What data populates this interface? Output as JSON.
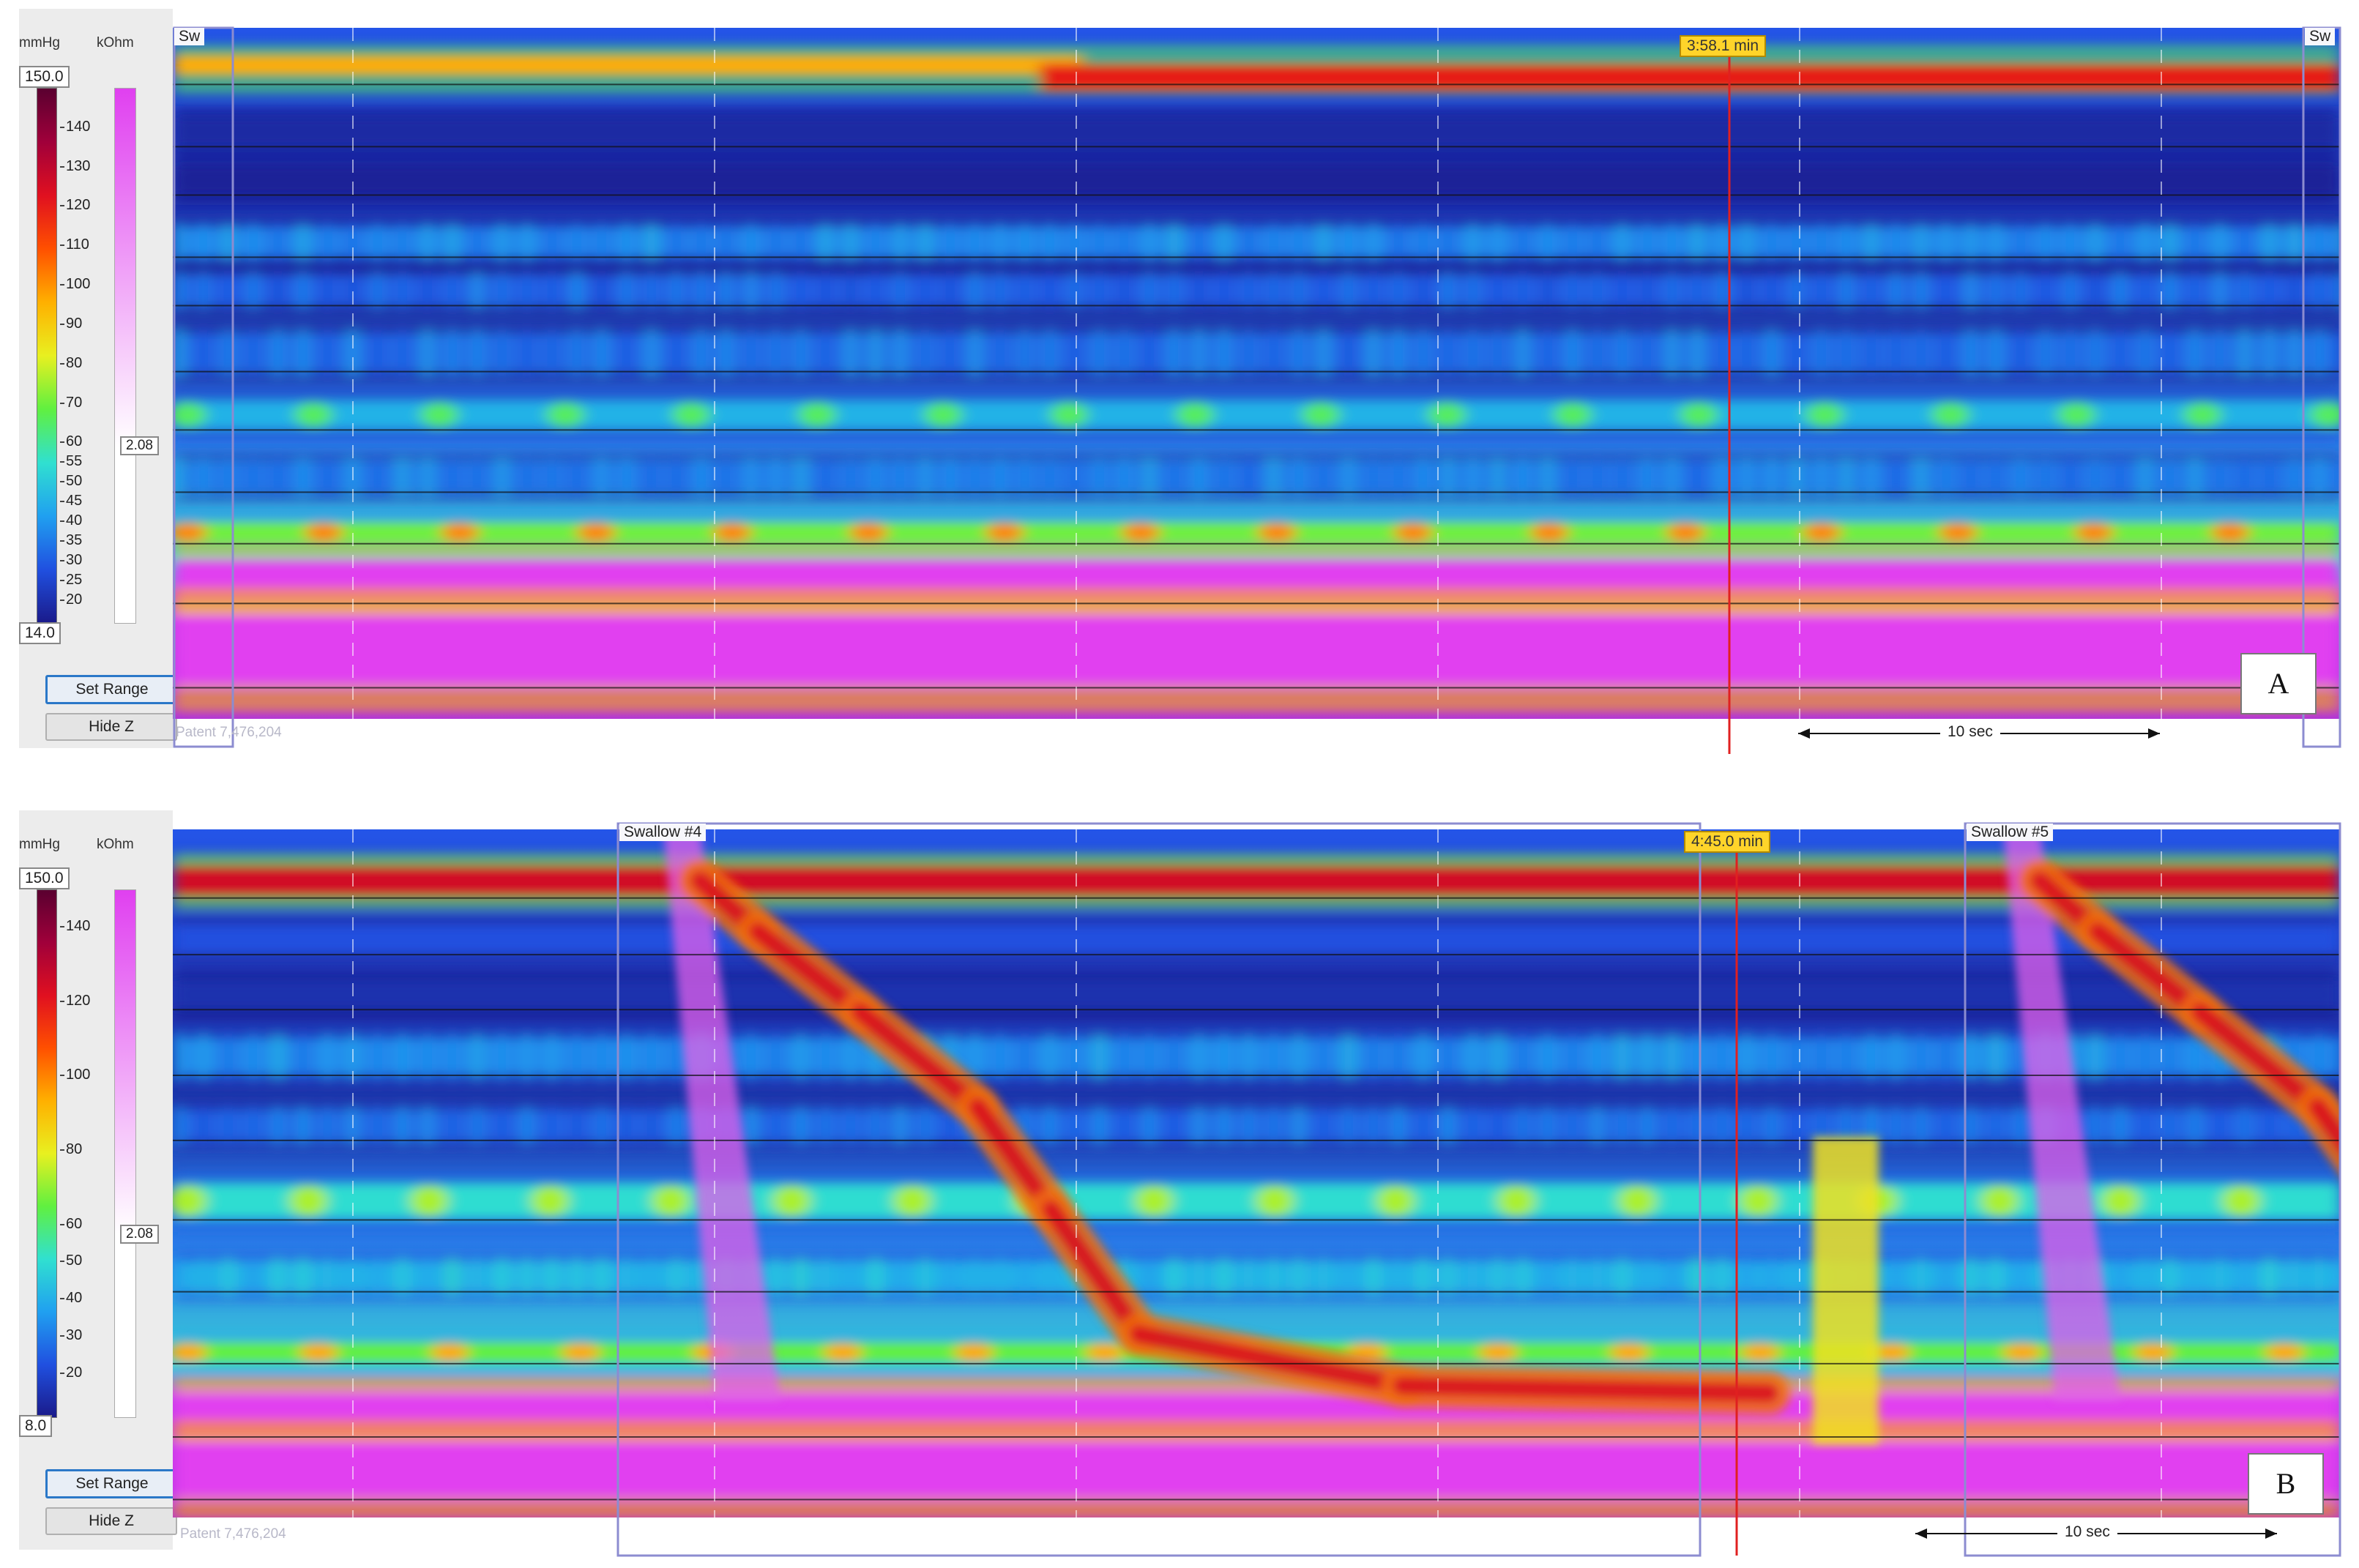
{
  "colorbar": {
    "pressure_unit": "mmHg",
    "impedance_unit": "kOhm",
    "impedance_max": "",
    "impedance_min": "2.08"
  },
  "buttons": {
    "set_range": "Set Range",
    "hide_z": "Hide Z"
  },
  "patent_text": "Patent 7,476,204",
  "scale_bar_label": "10 sec",
  "chart_data": [
    {
      "type": "heatmap",
      "panel_label": "A",
      "pressure_range_mmHg": [
        "150.0",
        "14.0"
      ],
      "colorbar_ticks": [
        140,
        130,
        120,
        110,
        100,
        90,
        80,
        70,
        60,
        55,
        50,
        45,
        40,
        35,
        30,
        25,
        20
      ],
      "time_marker": "3:58.1 min",
      "swallow_labels": [
        "Sw",
        "Sw"
      ],
      "bands": [
        {
          "pos": 0.06,
          "h": 0.04,
          "value": 120,
          "profile": "step_high_after_mid"
        },
        {
          "pos": 0.15,
          "h": 0.04,
          "value": 18
        },
        {
          "pos": 0.22,
          "h": 0.04,
          "value": 16
        },
        {
          "pos": 0.31,
          "h": 0.04,
          "value": 36,
          "profile": "wavy"
        },
        {
          "pos": 0.38,
          "h": 0.04,
          "value": 30,
          "profile": "wavy"
        },
        {
          "pos": 0.47,
          "h": 0.05,
          "value": 32,
          "profile": "wavy"
        },
        {
          "pos": 0.56,
          "h": 0.04,
          "value": 45,
          "profile": "dotted"
        },
        {
          "pos": 0.65,
          "h": 0.04,
          "value": 34,
          "profile": "wavy"
        },
        {
          "pos": 0.73,
          "h": 0.03,
          "value": 70,
          "profile": "dotted"
        },
        {
          "pos": 0.8,
          "h": 0.06,
          "value": 160,
          "profile": "impedance"
        },
        {
          "pos": 0.9,
          "h": 0.1,
          "value": 170,
          "profile": "impedance"
        }
      ]
    },
    {
      "type": "heatmap",
      "panel_label": "B",
      "pressure_range_mmHg": [
        "150.0",
        "8.0"
      ],
      "colorbar_ticks": [
        140,
        120,
        100,
        80,
        60,
        50,
        40,
        30,
        20
      ],
      "time_marker": "4:45.0 min",
      "swallow_labels": [
        "Swallow #4",
        "Swallow #5"
      ],
      "bands": [
        {
          "pos": 0.075,
          "h": 0.045,
          "value": 125
        },
        {
          "pos": 0.16,
          "h": 0.04,
          "value": 22
        },
        {
          "pos": 0.24,
          "h": 0.04,
          "value": 14
        },
        {
          "pos": 0.33,
          "h": 0.05,
          "value": 32,
          "profile": "wavy"
        },
        {
          "pos": 0.43,
          "h": 0.04,
          "value": 26,
          "profile": "wavy"
        },
        {
          "pos": 0.54,
          "h": 0.05,
          "value": 50,
          "profile": "dotted"
        },
        {
          "pos": 0.65,
          "h": 0.04,
          "value": 40,
          "profile": "wavy"
        },
        {
          "pos": 0.76,
          "h": 0.03,
          "value": 65,
          "profile": "dotted"
        },
        {
          "pos": 0.85,
          "h": 0.06,
          "value": 160,
          "profile": "impedance"
        },
        {
          "pos": 0.93,
          "h": 0.08,
          "value": 170,
          "profile": "impedance"
        }
      ]
    }
  ],
  "colors": {
    "scale": [
      "#1a1a8a",
      "#2050e0",
      "#20a0f0",
      "#30e0d0",
      "#60f040",
      "#e8f020",
      "#ffb000",
      "#ff5000",
      "#e01020",
      "#a0003a",
      "#5a0030"
    ],
    "impedance": "#e040f0",
    "marker_line": "#e02020",
    "swallow_box": "#8c8cd0"
  }
}
